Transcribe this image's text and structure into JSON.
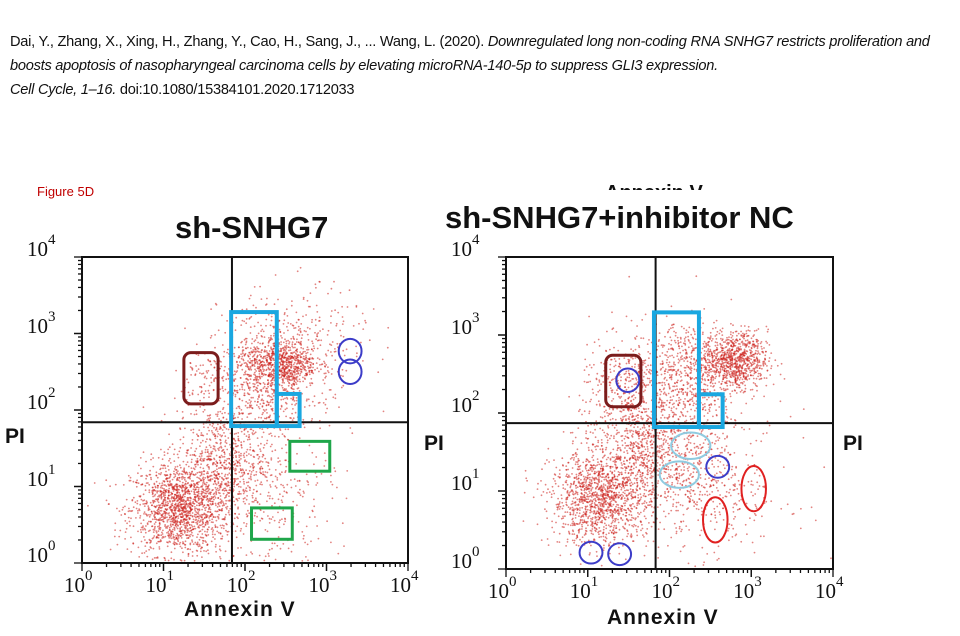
{
  "citation": {
    "authors": "Dai, Y., Zhang, X., Xing, H., Zhang, Y., Cao, H., Sang, J., ... Wang, L. (2020). ",
    "title": "Downregulated long non-coding RNA SNHG7 restricts proliferation and boosts apoptosis of nasopharyngeal carcinoma cells by elevating microRNA-140-5p to suppress GLI3 expression.",
    "journal": "Cell Cycle, 1–16.",
    "doi": " doi:10.1080/15384101.2020.1712033"
  },
  "figure_label": "Figure 5D",
  "cut_off_label": "Annexin V",
  "chart_data": [
    {
      "type": "scatter",
      "title": "sh-SNHG7",
      "xlabel": "Annexin V",
      "ylabel": "PI",
      "x_scale": "log",
      "y_scale": "log",
      "xlim": [
        1,
        10000
      ],
      "ylim": [
        1,
        10000
      ],
      "x_ticks": [
        {
          "base": "10",
          "exp": "0"
        },
        {
          "base": "10",
          "exp": "1"
        },
        {
          "base": "10",
          "exp": "2"
        },
        {
          "base": "10",
          "exp": "3"
        },
        {
          "base": "10",
          "exp": "4"
        }
      ],
      "y_ticks": [
        {
          "base": "10",
          "exp": "0"
        },
        {
          "base": "10",
          "exp": "1"
        },
        {
          "base": "10",
          "exp": "2"
        },
        {
          "base": "10",
          "exp": "3"
        },
        {
          "base": "10",
          "exp": "4"
        }
      ],
      "quadrant_gate_log10": [
        1.84,
        1.84
      ],
      "point_color": "#cc1f1a",
      "populations_log10": [
        {
          "center": [
            1.2,
            0.7
          ],
          "spread": [
            0.3,
            0.3
          ],
          "n": 1500
        },
        {
          "center": [
            1.7,
            1.3
          ],
          "spread": [
            0.28,
            0.35
          ],
          "n": 600
        },
        {
          "center": [
            2.45,
            2.6
          ],
          "spread": [
            0.22,
            0.15
          ],
          "n": 650
        },
        {
          "center": [
            2.2,
            2.3
          ],
          "spread": [
            0.35,
            0.35
          ],
          "n": 600
        },
        {
          "center": [
            2.6,
            2.9
          ],
          "spread": [
            0.45,
            0.35
          ],
          "n": 300
        },
        {
          "center": [
            2.3,
            1.0
          ],
          "spread": [
            0.4,
            0.55
          ],
          "n": 350
        },
        {
          "center": [
            1.45,
            2.4
          ],
          "spread": [
            0.15,
            0.22
          ],
          "n": 70
        }
      ],
      "annotations_log10": [
        {
          "shape": "roundrect",
          "color": "#7b1c1c",
          "x": [
            1.25,
            1.67
          ],
          "y": [
            2.08,
            2.75
          ]
        },
        {
          "shape": "rect",
          "color": "#1aa7e0",
          "x": [
            1.83,
            2.39
          ],
          "y": [
            1.79,
            3.28
          ]
        },
        {
          "shape": "rect",
          "color": "#1aa7e0",
          "x": [
            2.39,
            2.67
          ],
          "y": [
            1.79,
            2.21
          ]
        },
        {
          "shape": "ellipse",
          "color": "#3c3cc8",
          "cx": 3.29,
          "cy": 2.77,
          "rx": 0.14,
          "ry": 0.16
        },
        {
          "shape": "ellipse",
          "color": "#3c3cc8",
          "cx": 3.29,
          "cy": 2.5,
          "rx": 0.14,
          "ry": 0.16
        },
        {
          "shape": "rect",
          "color": "#1fa64a",
          "x": [
            2.55,
            3.04
          ],
          "y": [
            1.2,
            1.59
          ]
        },
        {
          "shape": "rect",
          "color": "#1fa64a",
          "x": [
            2.08,
            2.58
          ],
          "y": [
            0.31,
            0.72
          ]
        }
      ]
    },
    {
      "type": "scatter",
      "title": "sh-SNHG7+inhibitor NC",
      "xlabel": "Annexin V",
      "ylabel": "PI",
      "x_scale": "log",
      "y_scale": "log",
      "xlim": [
        1,
        10000
      ],
      "ylim": [
        1,
        10000
      ],
      "x_ticks": [
        {
          "base": "10",
          "exp": "0"
        },
        {
          "base": "10",
          "exp": "1"
        },
        {
          "base": "10",
          "exp": "2"
        },
        {
          "base": "10",
          "exp": "3"
        },
        {
          "base": "10",
          "exp": "4"
        }
      ],
      "y_ticks": [
        {
          "base": "10",
          "exp": "0"
        },
        {
          "base": "10",
          "exp": "1"
        },
        {
          "base": "10",
          "exp": "2"
        },
        {
          "base": "10",
          "exp": "3"
        },
        {
          "base": "10",
          "exp": "4"
        }
      ],
      "quadrant_gate_log10": [
        1.83,
        1.87
      ],
      "point_color": "#cc1f1a",
      "populations_log10": [
        {
          "center": [
            1.15,
            0.9
          ],
          "spread": [
            0.3,
            0.3
          ],
          "n": 1300
        },
        {
          "center": [
            1.7,
            1.6
          ],
          "spread": [
            0.3,
            0.4
          ],
          "n": 700
        },
        {
          "center": [
            2.8,
            2.68
          ],
          "spread": [
            0.2,
            0.18
          ],
          "n": 800
        },
        {
          "center": [
            2.2,
            2.5
          ],
          "spread": [
            0.35,
            0.35
          ],
          "n": 700
        },
        {
          "center": [
            2.2,
            1.3
          ],
          "spread": [
            0.35,
            0.4
          ],
          "n": 400
        },
        {
          "center": [
            1.4,
            2.3
          ],
          "spread": [
            0.25,
            0.3
          ],
          "n": 250
        },
        {
          "center": [
            2.7,
            1.0
          ],
          "spread": [
            0.4,
            0.5
          ],
          "n": 200
        }
      ],
      "annotations_log10": [
        {
          "shape": "roundrect",
          "color": "#7b1c1c",
          "x": [
            1.22,
            1.65
          ],
          "y": [
            2.08,
            2.74
          ]
        },
        {
          "shape": "ellipse",
          "color": "#3c3cc8",
          "cx": 1.49,
          "cy": 2.42,
          "rx": 0.14,
          "ry": 0.15
        },
        {
          "shape": "rect",
          "color": "#1aa7e0",
          "x": [
            1.81,
            2.36
          ],
          "y": [
            1.82,
            3.29
          ]
        },
        {
          "shape": "rect",
          "color": "#1aa7e0",
          "x": [
            2.36,
            2.65
          ],
          "y": [
            1.82,
            2.24
          ]
        },
        {
          "shape": "ellipse",
          "color": "#8fcbe0",
          "cx": 2.26,
          "cy": 1.58,
          "rx": 0.24,
          "ry": 0.17
        },
        {
          "shape": "ellipse",
          "color": "#8fcbe0",
          "cx": 2.12,
          "cy": 1.21,
          "rx": 0.24,
          "ry": 0.17
        },
        {
          "shape": "ellipse",
          "color": "#3c3cc8",
          "cx": 2.59,
          "cy": 1.31,
          "rx": 0.14,
          "ry": 0.14
        },
        {
          "shape": "ellipse",
          "color": "#e02020",
          "cx": 3.03,
          "cy": 1.03,
          "rx": 0.15,
          "ry": 0.29
        },
        {
          "shape": "ellipse",
          "color": "#e02020",
          "cx": 2.56,
          "cy": 0.63,
          "rx": 0.15,
          "ry": 0.29
        },
        {
          "shape": "ellipse",
          "color": "#3c3cc8",
          "cx": 1.04,
          "cy": 0.21,
          "rx": 0.14,
          "ry": 0.14
        },
        {
          "shape": "ellipse",
          "color": "#3c3cc8",
          "cx": 1.39,
          "cy": 0.19,
          "rx": 0.14,
          "ry": 0.14
        }
      ]
    }
  ]
}
